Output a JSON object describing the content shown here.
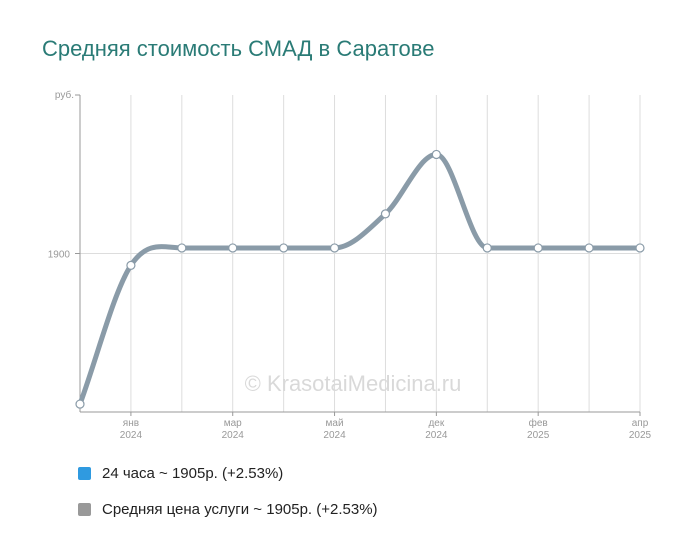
{
  "title": "Средняя стоимость СМАД в Саратове",
  "watermark": "© KrasotaiMedicina.ru",
  "legend": [
    {
      "label": "24 часа ~ 1905р. (+2.53%)",
      "color": "#2f9ae0"
    },
    {
      "label": "Средняя цена услуги ~ 1905р. (+2.53%)",
      "color": "#999999"
    }
  ],
  "colors": {
    "line": "#8a9ba8",
    "point_fill": "#ffffff",
    "point_stroke": "#8a9ba8",
    "grid": "#dddddd",
    "axis": "#999999"
  },
  "chart_data": {
    "type": "line",
    "yunit": "руб.",
    "ytick": "1900",
    "ylim": [
      1700,
      2100
    ],
    "grid": true,
    "legend_position": "bottom-left",
    "x_labels": [
      {
        "month": "янв",
        "year": "2024",
        "index": 1
      },
      {
        "month": "мар",
        "year": "2024",
        "index": 3
      },
      {
        "month": "май",
        "year": "2024",
        "index": 5
      },
      {
        "month": "дек",
        "year": "2024",
        "index": 7
      },
      {
        "month": "фев",
        "year": "2025",
        "index": 9
      },
      {
        "month": "апр",
        "year": "2025",
        "index": 11
      }
    ],
    "series": [
      {
        "values": [
          1710,
          1885,
          1907,
          1907,
          1907,
          1907,
          1950,
          2025,
          1907,
          1907,
          1907,
          1907
        ]
      }
    ]
  }
}
